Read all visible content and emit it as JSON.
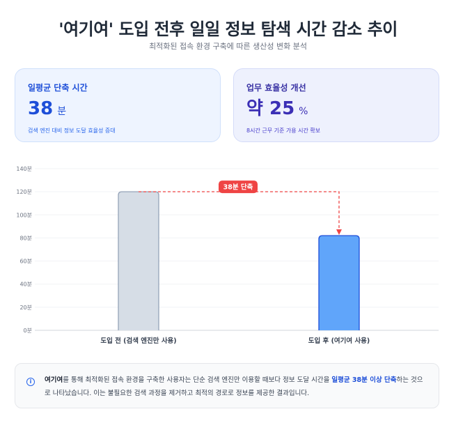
{
  "header": {
    "title": "'여기여' 도입 전후 일일 정보 탐색 시간 감소 추이",
    "subtitle": "최적화된 접속 환경 구축에 따른 생산성 변화 분석"
  },
  "cards": [
    {
      "label": "일평균 단축 시간",
      "value": "38",
      "unit": "분",
      "note": "검색 엔진 대비 정보 도달 효율성 증대"
    },
    {
      "label": "업무 효율성 개선",
      "value": "약 25",
      "unit": "%",
      "note": "8시간 근무 기준 가용 시간 확보"
    }
  ],
  "chart_data": {
    "type": "bar",
    "categories": [
      "도입 전 (검색 엔진만 사용)",
      "도입 후 (여기여 사용)"
    ],
    "values": [
      120,
      82
    ],
    "ylim": [
      0,
      140
    ],
    "yticks": [
      "0분",
      "20분",
      "40분",
      "60분",
      "80분",
      "100분",
      "120분",
      "140분"
    ],
    "annotation": "38분 단축",
    "grid": true,
    "colors": {
      "before": "#d6dde6",
      "before_stroke": "#94a3b8",
      "after": "#60a5fa",
      "after_stroke": "#1d4ed8",
      "annotation": "#ef4444"
    }
  },
  "info": {
    "brand": "여기여",
    "text1": "를 통해 최적화된 접속 환경을 구축한 사용자는 단순 검색 엔진만 이용할 때보다 정보 도달 시간을 ",
    "highlight": "일평균 38분 이상 단축",
    "text2": "하는 것으로 나타났습니다. 이는 불필요한 검색 과정을 제거하고 최적의 경로로 정보를 제공한 결과입니다.",
    "icon": "info-icon"
  }
}
